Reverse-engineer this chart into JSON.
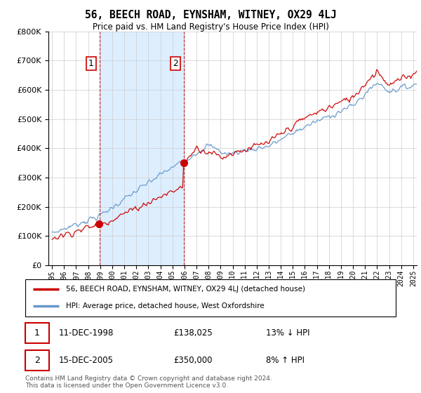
{
  "title": "56, BEECH ROAD, EYNSHAM, WITNEY, OX29 4LJ",
  "subtitle": "Price paid vs. HM Land Registry's House Price Index (HPI)",
  "property_label": "56, BEECH ROAD, EYNSHAM, WITNEY, OX29 4LJ (detached house)",
  "hpi_label": "HPI: Average price, detached house, West Oxfordshire",
  "sale1_date": "11-DEC-1998",
  "sale1_price": "£138,025",
  "sale1_hpi": "13% ↓ HPI",
  "sale2_date": "15-DEC-2005",
  "sale2_price": "£350,000",
  "sale2_hpi": "8% ↑ HPI",
  "footer": "Contains HM Land Registry data © Crown copyright and database right 2024.\nThis data is licensed under the Open Government Licence v3.0.",
  "property_color": "#cc0000",
  "hpi_color": "#6699cc",
  "shade_color": "#ddeeff",
  "sale1_year": 1998.95,
  "sale2_year": 2005.95,
  "sale1_price_val": 138025,
  "sale2_price_val": 350000,
  "ylim": [
    0,
    800000
  ],
  "xlim_start": 1994.7,
  "xlim_end": 2025.3
}
